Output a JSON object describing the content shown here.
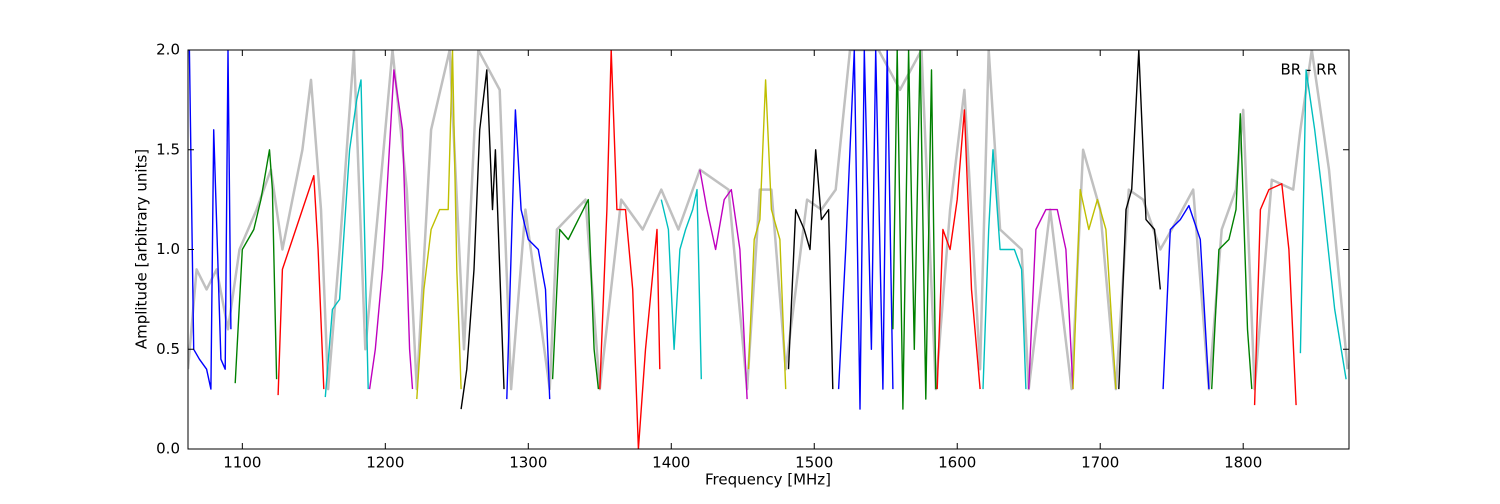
{
  "chart_data": {
    "type": "line",
    "xlabel": "Frequency [MHz]",
    "ylabel": "Amplitude [arbitrary units]",
    "annotation": "BR - RR",
    "xlim": [
      1062,
      1874
    ],
    "ylim": [
      0,
      2
    ],
    "xticks": [
      1100,
      1200,
      1300,
      1400,
      1500,
      1600,
      1700,
      1800
    ],
    "yticks": [
      {
        "value": 0,
        "label": "0.0"
      },
      0.5,
      {
        "value": 1,
        "label": "1.0"
      },
      1.5,
      {
        "value": 2,
        "label": "2.0"
      }
    ],
    "series": [
      {
        "color": "#c0c0c0",
        "x": [
          1062,
          1068,
          1075,
          1082,
          1090,
          1098,
          1110,
          1120,
          1128,
          1142,
          1148,
          1155,
          1160,
          1168,
          1178,
          1186,
          1195,
          1205,
          1215,
          1222,
          1232,
          1245,
          1255,
          1265,
          1280,
          1288,
          1298,
          1315,
          1320,
          1340,
          1350,
          1365,
          1380,
          1393,
          1405,
          1420,
          1440,
          1453,
          1462,
          1470,
          1480,
          1495,
          1505,
          1515,
          1525,
          1535,
          1545,
          1560,
          1575,
          1585,
          1595,
          1605,
          1616,
          1622,
          1630,
          1645,
          1650,
          1665,
          1680,
          1688,
          1700,
          1711,
          1720,
          1730,
          1742,
          1750,
          1765,
          1776,
          1785,
          1795,
          1800,
          1808,
          1820,
          1835,
          1840,
          1848,
          1860,
          1873
        ],
        "values": [
          0.4,
          0.9,
          0.8,
          0.9,
          0.6,
          1.0,
          1.2,
          1.4,
          1.0,
          1.5,
          1.85,
          1.2,
          0.3,
          1.0,
          2.0,
          0.5,
          1.2,
          2.0,
          1.3,
          0.3,
          1.6,
          2.0,
          0.5,
          2.0,
          1.8,
          0.3,
          1.2,
          0.3,
          1.1,
          1.25,
          0.3,
          1.25,
          1.1,
          1.3,
          1.1,
          1.4,
          1.3,
          0.3,
          1.3,
          1.3,
          0.4,
          1.25,
          1.2,
          1.3,
          2.0,
          2.0,
          2.0,
          1.8,
          2.0,
          0.3,
          1.2,
          1.8,
          0.4,
          2.0,
          1.1,
          1.0,
          0.3,
          1.2,
          0.3,
          1.5,
          1.2,
          0.3,
          1.3,
          1.25,
          1.0,
          1.1,
          1.3,
          0.3,
          1.1,
          1.3,
          1.7,
          0.3,
          1.35,
          1.3,
          1.6,
          2.0,
          1.4,
          0.4
        ]
      },
      {
        "color": "#0000ff",
        "x": [
          1063,
          1066,
          1070,
          1075,
          1078,
          1080,
          1085,
          1088,
          1090,
          1092
        ],
        "values": [
          2.0,
          0.5,
          0.45,
          0.4,
          0.3,
          1.6,
          0.45,
          0.4,
          2.0,
          0.6
        ]
      },
      {
        "color": "#008000",
        "x": [
          1095,
          1100,
          1108,
          1113,
          1119,
          1121,
          1124
        ],
        "values": [
          0.33,
          1.0,
          1.1,
          1.25,
          1.5,
          1.3,
          0.35
        ]
      },
      {
        "color": "#ff0000",
        "x": [
          1125,
          1128,
          1135,
          1142,
          1150,
          1153,
          1157
        ],
        "values": [
          0.27,
          0.9,
          1.05,
          1.2,
          1.37,
          1.0,
          0.3
        ]
      },
      {
        "color": "#00bfbf",
        "x": [
          1158,
          1163,
          1168,
          1175,
          1180,
          1183,
          1188
        ],
        "values": [
          0.26,
          0.7,
          0.75,
          1.5,
          1.75,
          1.85,
          0.3
        ]
      },
      {
        "color": "#bf00bf",
        "x": [
          1189,
          1193,
          1198,
          1206,
          1212,
          1217,
          1219
        ],
        "values": [
          0.3,
          0.5,
          0.9,
          1.9,
          1.6,
          0.5,
          0.3
        ]
      },
      {
        "color": "#bfbf00",
        "x": [
          1222,
          1227,
          1232,
          1238,
          1244,
          1247,
          1250,
          1253
        ],
        "values": [
          0.25,
          0.8,
          1.1,
          1.2,
          1.2,
          2.0,
          0.9,
          0.3
        ]
      },
      {
        "color": "#000000",
        "x": [
          1253,
          1257,
          1262,
          1266,
          1271,
          1275,
          1277,
          1279,
          1283
        ],
        "values": [
          0.2,
          0.4,
          0.9,
          1.6,
          1.9,
          1.2,
          1.5,
          1.1,
          0.3
        ]
      },
      {
        "color": "#0000ff",
        "x": [
          1285,
          1291,
          1295,
          1300,
          1307,
          1312,
          1315
        ],
        "values": [
          0.25,
          1.7,
          1.2,
          1.05,
          1.0,
          0.8,
          0.25
        ]
      },
      {
        "color": "#008000",
        "x": [
          1317,
          1322,
          1328,
          1335,
          1342,
          1346,
          1349
        ],
        "values": [
          0.35,
          1.1,
          1.05,
          1.15,
          1.25,
          0.5,
          0.3
        ]
      },
      {
        "color": "#ff0000",
        "x": [
          1350,
          1355,
          1358,
          1362,
          1368,
          1373,
          1377,
          1382,
          1390,
          1392
        ],
        "values": [
          0.3,
          1.2,
          2.0,
          1.2,
          1.2,
          0.8,
          0.0,
          0.5,
          1.1,
          0.4
        ]
      },
      {
        "color": "#00bfbf",
        "x": [
          1393,
          1398,
          1402,
          1406,
          1410,
          1415,
          1418,
          1421
        ],
        "values": [
          1.25,
          1.1,
          0.5,
          1.0,
          1.1,
          1.2,
          1.3,
          0.35
        ]
      },
      {
        "color": "#bf00bf",
        "x": [
          1420,
          1425,
          1431,
          1437,
          1442,
          1448,
          1453
        ],
        "values": [
          1.4,
          1.2,
          1.0,
          1.25,
          1.3,
          1.0,
          0.25
        ]
      },
      {
        "color": "#bfbf00",
        "x": [
          1454,
          1458,
          1462,
          1466,
          1470,
          1476,
          1480
        ],
        "values": [
          0.4,
          1.05,
          1.15,
          1.85,
          1.2,
          1.05,
          0.3
        ]
      },
      {
        "color": "#000000",
        "x": [
          1482,
          1487,
          1493,
          1497,
          1501,
          1505,
          1510,
          1513
        ],
        "values": [
          0.4,
          1.2,
          1.1,
          1.0,
          1.5,
          1.15,
          1.2,
          0.3
        ]
      },
      {
        "color": "#0000ff",
        "x": [
          1517,
          1522,
          1528,
          1532,
          1535,
          1540,
          1543,
          1548,
          1551,
          1555
        ],
        "values": [
          0.3,
          1.0,
          2.0,
          0.2,
          2.0,
          0.5,
          2.0,
          0.3,
          2.0,
          0.3
        ]
      },
      {
        "color": "#008000",
        "x": [
          1555,
          1558,
          1562,
          1566,
          1570,
          1574,
          1578,
          1582,
          1585
        ],
        "values": [
          0.6,
          2.0,
          0.2,
          2.0,
          0.5,
          2.0,
          0.25,
          1.9,
          0.3
        ]
      },
      {
        "color": "#ff0000",
        "x": [
          1586,
          1590,
          1595,
          1600,
          1605,
          1610,
          1616
        ],
        "values": [
          0.3,
          1.1,
          1.0,
          1.25,
          1.7,
          0.8,
          0.3
        ]
      },
      {
        "color": "#00bfbf",
        "x": [
          1618,
          1622,
          1625,
          1630,
          1640,
          1645,
          1648
        ],
        "values": [
          0.3,
          1.1,
          1.5,
          1.0,
          1.0,
          0.9,
          0.3
        ]
      },
      {
        "color": "#bf00bf",
        "x": [
          1650,
          1655,
          1662,
          1670,
          1676,
          1681
        ],
        "values": [
          0.3,
          1.1,
          1.2,
          1.2,
          1.0,
          0.3
        ]
      },
      {
        "color": "#bfbf00",
        "x": [
          1681,
          1686,
          1692,
          1698,
          1704,
          1711
        ],
        "values": [
          0.3,
          1.3,
          1.1,
          1.25,
          1.1,
          0.3
        ]
      },
      {
        "color": "#000000",
        "x": [
          1713,
          1718,
          1722,
          1727,
          1732,
          1738,
          1742
        ],
        "values": [
          0.3,
          1.2,
          1.3,
          2.0,
          1.15,
          1.1,
          0.8
        ]
      },
      {
        "color": "#0000ff",
        "x": [
          1744,
          1749,
          1756,
          1762,
          1770,
          1776
        ],
        "values": [
          0.3,
          1.1,
          1.15,
          1.22,
          1.05,
          0.3
        ]
      },
      {
        "color": "#008000",
        "x": [
          1778,
          1783,
          1790,
          1795,
          1798,
          1803,
          1806
        ],
        "values": [
          0.3,
          1.0,
          1.05,
          1.2,
          1.68,
          0.6,
          0.3
        ]
      },
      {
        "color": "#ff0000",
        "x": [
          1808,
          1812,
          1818,
          1827,
          1832,
          1837
        ],
        "values": [
          0.22,
          1.2,
          1.3,
          1.33,
          1.0,
          0.22
        ]
      },
      {
        "color": "#00bfbf",
        "x": [
          1840,
          1844,
          1850,
          1855,
          1864,
          1872
        ],
        "values": [
          0.48,
          1.9,
          1.6,
          1.3,
          0.7,
          0.35
        ]
      }
    ]
  }
}
